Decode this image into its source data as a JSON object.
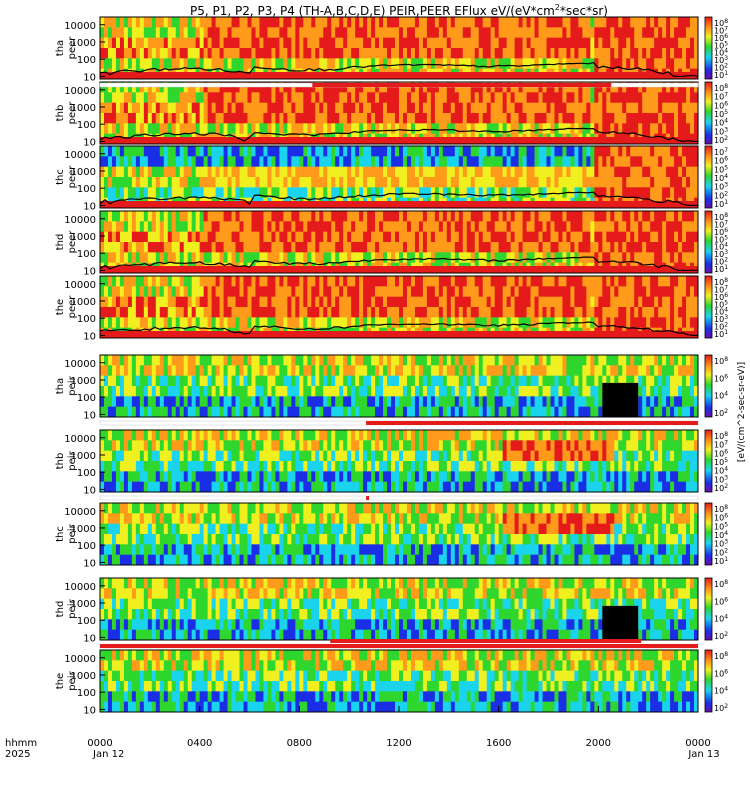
{
  "chart_data": {
    "type": "heatmap",
    "title": "P5, P1, P2, P3, P4 (TH-A,B,C,D,E) PEIR,PEER EFlux eV/(eV*cm",
    "title_sup": "2",
    "title_tail": "*sec*sr)",
    "x_ticks": [
      "0000",
      "0400",
      "0800",
      "1200",
      "1600",
      "2000",
      "0000"
    ],
    "x_label_line1": "hhmm",
    "x_label_line2": "2025",
    "x_date_start": "Jan 12",
    "x_date_end": "Jan 13",
    "y_ticks": [
      "10",
      "100",
      "1000",
      "10000"
    ],
    "y_scale": "log",
    "colorbar_label": "[eV/(cm^2-sec-sr-eV)]",
    "colors": {
      "blue": "#1a2ee6",
      "cyan": "#1ad4ee",
      "green": "#2ed62e",
      "yellow": "#f0f020",
      "orange": "#ff9a1a",
      "red": "#e51a1a",
      "black": "#000000"
    },
    "panels": [
      {
        "probe": "tha",
        "species": "peer",
        "colorbar_ticks": [
          "10^8",
          "10^7",
          "10^6",
          "10^5",
          "10^4",
          "10^3",
          "10^2",
          "10^1"
        ],
        "bar_after": [
          0.355,
          0.855
        ]
      },
      {
        "probe": "thb",
        "species": "peer",
        "colorbar_ticks": [
          "10^8",
          "10^7",
          "10^6",
          "10^5",
          "10^4",
          "10^3",
          "10^2"
        ]
      },
      {
        "probe": "thc",
        "species": "peer",
        "colorbar_ticks": [
          "10^7",
          "10^6",
          "10^5",
          "10^4",
          "10^3",
          "10^2",
          "10^1"
        ]
      },
      {
        "probe": "thd",
        "species": "peer",
        "colorbar_ticks": [
          "10^8",
          "10^7",
          "10^6",
          "10^5",
          "10^4",
          "10^3",
          "10^2",
          "10^1"
        ]
      },
      {
        "probe": "the",
        "species": "peer",
        "colorbar_ticks": [
          "10^8",
          "10^7",
          "10^6",
          "10^5",
          "10^4",
          "10^3",
          "10^2",
          "10^1"
        ]
      },
      {
        "probe": "tha",
        "species": "peir",
        "colorbar_ticks": [
          "10^8",
          "10^6",
          "10^4",
          "10^2"
        ],
        "bar_after": [
          0.445,
          1.0
        ]
      },
      {
        "probe": "thb",
        "species": "peir",
        "colorbar_ticks": [
          "10^8",
          "10^7",
          "10^6",
          "10^5",
          "10^4",
          "10^3",
          "10^2"
        ],
        "bar_after": [
          0.445,
          0.45
        ]
      },
      {
        "probe": "thc",
        "species": "peir",
        "colorbar_ticks": [
          "10^8",
          "10^6",
          "10^5",
          "10^4",
          "10^3",
          "10^2",
          "10^1"
        ]
      },
      {
        "probe": "thd",
        "species": "peir",
        "colorbar_ticks": [
          "10^8",
          "10^6",
          "10^4",
          "10^2"
        ],
        "bar_after": [
          0.0,
          1.0
        ]
      },
      {
        "probe": "the",
        "species": "peir",
        "colorbar_ticks": [
          "10^8",
          "10^6",
          "10^4",
          "10^2"
        ]
      }
    ],
    "bar_before_panel_9": [
      0.385,
      0.905
    ]
  }
}
